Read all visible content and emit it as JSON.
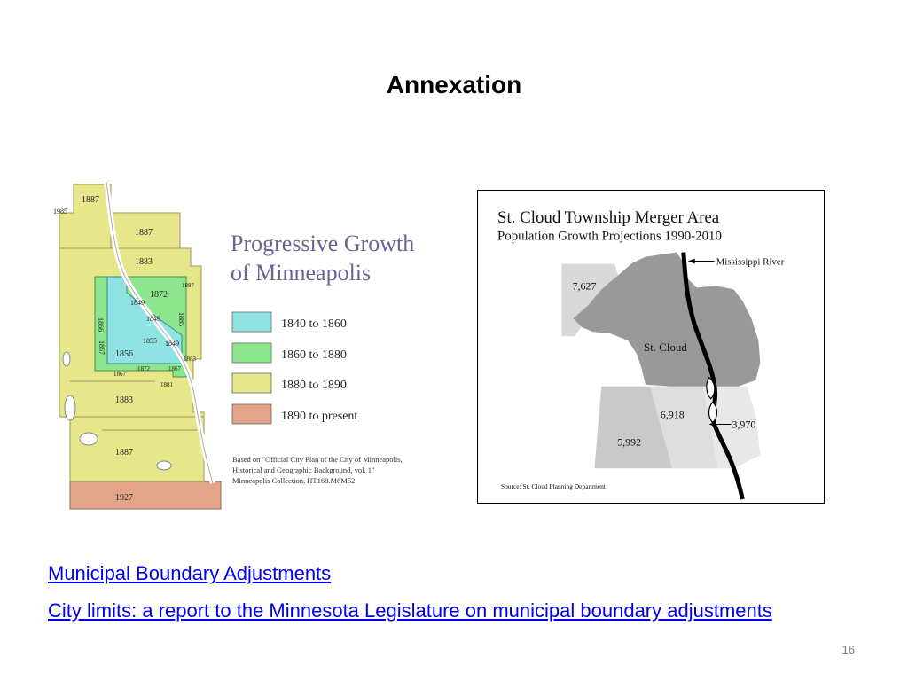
{
  "slide": {
    "title": "Annexation",
    "page_number": "16"
  },
  "minneapolis_map": {
    "heading_line1": "Progressive Growth",
    "heading_line2": "of Minneapolis",
    "legend": [
      {
        "label": "1840 to 1860",
        "color": "#8fe3e3"
      },
      {
        "label": "1860 to 1880",
        "color": "#8de68d"
      },
      {
        "label": "1880 to 1890",
        "color": "#e6e68a"
      },
      {
        "label": "1890 to present",
        "color": "#e3a48a"
      }
    ],
    "source_note_line1": "Based on \"Official City Plan of the City of Minneapolis,",
    "source_note_line2": "Historical and Geographic Background, vol. 1\"",
    "source_note_line3": "Minneapolis Collection, HT168.M6M52",
    "year_labels": {
      "y1985": "1985",
      "y1887a": "1887",
      "y1887b": "1887",
      "y1883a": "1883",
      "y1872": "1872",
      "y1887c": "1887",
      "y1866": "1866",
      "y1849a": "1849",
      "y1849b": "1849",
      "y1885": "1885",
      "y1855": "1855",
      "y1849c": "1849",
      "y1867a": "1867",
      "y1856": "1856",
      "y1883b": "1883",
      "y1867b": "1867",
      "y1872b": "1872",
      "y1867c": "1867",
      "y1881": "1881",
      "y1883c": "1883",
      "y1887d": "1887",
      "y1927": "1927"
    }
  },
  "stcloud_map": {
    "title": "St. Cloud Township Merger Area",
    "subtitle": "Population Growth Projections 1990-2010",
    "river_label": "Mississippi River",
    "city_label": "St. Cloud",
    "values": {
      "northwest": "7,627",
      "south_center": "6,918",
      "southwest": "5,992",
      "east": "3,970"
    },
    "source": "Source: St. Cloud Planning Department"
  },
  "links": {
    "link1": "Municipal Boundary Adjustments",
    "link2": "City limits: a report to the Minnesota Legislature on municipal boundary adjustments"
  },
  "colors": {
    "title": "#000000",
    "link": "#0000ee",
    "heading": "#6b6294",
    "gray_dark": "#999999",
    "gray_mid": "#bdbdbd",
    "gray_light": "#d9d9d9"
  }
}
